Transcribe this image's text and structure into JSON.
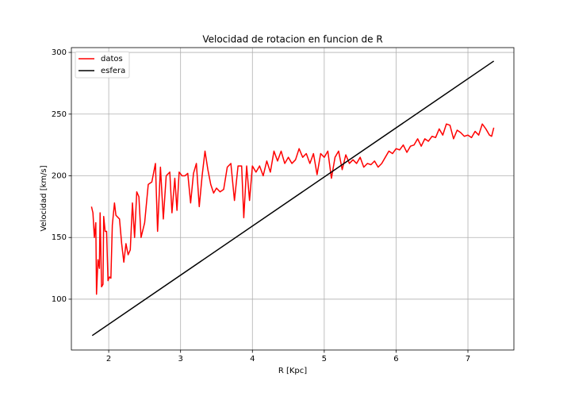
{
  "chart_data": {
    "type": "line",
    "title": "Velocidad de rotacion en funcion de R",
    "xlabel": "R [Kpc]",
    "ylabel": "Velocidad [km/s]",
    "xlim": [
      1.48,
      7.64
    ],
    "ylim": [
      58.8,
      303.9
    ],
    "xticks": [
      2,
      3,
      4,
      5,
      6,
      7
    ],
    "yticks": [
      100,
      150,
      200,
      250,
      300
    ],
    "grid": true,
    "legend": "upper left",
    "series": [
      {
        "name": "datos",
        "color": "#ff0000",
        "x": [
          1.76,
          1.78,
          1.8,
          1.82,
          1.83,
          1.85,
          1.87,
          1.88,
          1.9,
          1.92,
          1.93,
          1.95,
          1.97,
          1.99,
          2.01,
          2.03,
          2.05,
          2.08,
          2.1,
          2.15,
          2.18,
          2.21,
          2.24,
          2.27,
          2.3,
          2.33,
          2.36,
          2.39,
          2.42,
          2.45,
          2.5,
          2.55,
          2.6,
          2.65,
          2.68,
          2.72,
          2.76,
          2.8,
          2.85,
          2.88,
          2.92,
          2.95,
          2.98,
          3.02,
          3.06,
          3.1,
          3.14,
          3.18,
          3.22,
          3.26,
          3.3,
          3.34,
          3.38,
          3.42,
          3.46,
          3.5,
          3.55,
          3.6,
          3.65,
          3.7,
          3.75,
          3.8,
          3.85,
          3.88,
          3.92,
          3.96,
          4.0,
          4.05,
          4.1,
          4.15,
          4.2,
          4.25,
          4.3,
          4.35,
          4.4,
          4.45,
          4.5,
          4.55,
          4.6,
          4.65,
          4.7,
          4.75,
          4.8,
          4.85,
          4.9,
          4.95,
          5.0,
          5.05,
          5.1,
          5.15,
          5.2,
          5.25,
          5.3,
          5.35,
          5.4,
          5.45,
          5.5,
          5.55,
          5.6,
          5.65,
          5.7,
          5.75,
          5.8,
          5.85,
          5.9,
          5.95,
          6.0,
          6.05,
          6.1,
          6.15,
          6.2,
          6.25,
          6.3,
          6.35,
          6.4,
          6.45,
          6.5,
          6.55,
          6.6,
          6.65,
          6.7,
          6.75,
          6.8,
          6.85,
          6.9,
          6.95,
          7.0,
          7.05,
          7.1,
          7.15,
          7.2,
          7.25,
          7.3,
          7.33,
          7.36
        ],
        "values": [
          175,
          170,
          150,
          162,
          104,
          132,
          125,
          170,
          110,
          112,
          167,
          155,
          155,
          115,
          118,
          117,
          160,
          178,
          168,
          165,
          145,
          130,
          145,
          136,
          140,
          178,
          150,
          187,
          183,
          150,
          162,
          193,
          195,
          210,
          155,
          207,
          165,
          200,
          203,
          170,
          198,
          172,
          203,
          200,
          200,
          202,
          178,
          202,
          210,
          175,
          200,
          220,
          205,
          193,
          186,
          190,
          187,
          189,
          207,
          210,
          180,
          208,
          208,
          166,
          208,
          180,
          208,
          203,
          208,
          200,
          212,
          203,
          220,
          212,
          220,
          210,
          215,
          210,
          213,
          222,
          215,
          218,
          210,
          218,
          201,
          218,
          215,
          220,
          198,
          215,
          220,
          205,
          217,
          210,
          213,
          210,
          215,
          207,
          210,
          209,
          212,
          207,
          210,
          215,
          220,
          218,
          222,
          221,
          225,
          219,
          224,
          225,
          230,
          224,
          230,
          228,
          232,
          231,
          238,
          233,
          242,
          241,
          230,
          237,
          235,
          232,
          233,
          231,
          236,
          233,
          242,
          238,
          233,
          232,
          239
        ]
      },
      {
        "name": "esfera",
        "color": "#000000",
        "x": [
          1.77,
          7.36
        ],
        "values": [
          70.5,
          293
        ]
      }
    ]
  }
}
